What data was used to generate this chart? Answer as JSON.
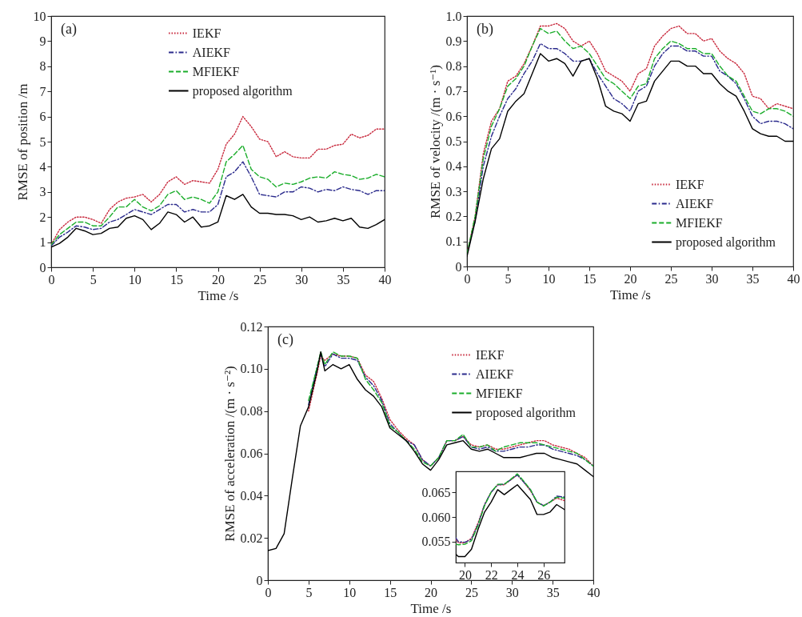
{
  "chart_data": [
    {
      "type": "line",
      "annotations": [
        "(a)"
      ],
      "xlabel": "Time /s",
      "ylabel": "RMSE of position /m",
      "legend": "top",
      "grid": false,
      "x": [
        0,
        1,
        2,
        3,
        4,
        5,
        6,
        7,
        8,
        9,
        10,
        11,
        12,
        13,
        14,
        15,
        16,
        17,
        18,
        19,
        20,
        21,
        22,
        23,
        24,
        25,
        26,
        27,
        28,
        29,
        30,
        31,
        32,
        33,
        34,
        35,
        36,
        37,
        38,
        39,
        40
      ],
      "xlim": [
        0,
        40
      ],
      "xticks": [
        0,
        5,
        10,
        15,
        20,
        25,
        30,
        35,
        40
      ],
      "ylim": [
        0,
        10
      ],
      "yticks": [
        0,
        1,
        2,
        3,
        4,
        5,
        6,
        7,
        8,
        9,
        10
      ],
      "series": [
        {
          "name": "IEKF",
          "color": "#c8283c",
          "line_style": "dotted",
          "values": [
            0.9,
            1.5,
            1.8,
            2.0,
            2.0,
            1.9,
            1.75,
            2.3,
            2.6,
            2.75,
            2.8,
            2.9,
            2.6,
            2.9,
            3.4,
            3.6,
            3.3,
            3.45,
            3.4,
            3.35,
            3.9,
            4.9,
            5.3,
            6.0,
            5.6,
            5.1,
            5.0,
            4.4,
            4.6,
            4.4,
            4.35,
            4.35,
            4.7,
            4.7,
            4.85,
            4.9,
            5.3,
            5.15,
            5.25,
            5.5,
            5.5
          ]
        },
        {
          "name": "AIEKF",
          "color": "#2a2a8c",
          "line_style": "dashdot",
          "values": [
            0.85,
            1.2,
            1.4,
            1.65,
            1.6,
            1.5,
            1.55,
            1.8,
            1.9,
            2.1,
            2.3,
            2.2,
            2.1,
            2.3,
            2.5,
            2.5,
            2.2,
            2.3,
            2.2,
            2.2,
            2.5,
            3.6,
            3.8,
            4.2,
            3.6,
            2.9,
            2.85,
            2.8,
            3.0,
            3.0,
            3.2,
            3.15,
            3.0,
            3.1,
            3.05,
            3.2,
            3.1,
            3.05,
            2.9,
            3.05,
            3.05
          ]
        },
        {
          "name": "MFIEKF",
          "color": "#1aad2a",
          "line_style": "dashed",
          "values": [
            0.9,
            1.3,
            1.55,
            1.8,
            1.8,
            1.65,
            1.65,
            2.0,
            2.4,
            2.4,
            2.7,
            2.4,
            2.25,
            2.45,
            2.9,
            3.05,
            2.7,
            2.8,
            2.7,
            2.55,
            3.0,
            4.2,
            4.5,
            4.85,
            3.9,
            3.6,
            3.5,
            3.2,
            3.35,
            3.3,
            3.4,
            3.55,
            3.6,
            3.55,
            3.8,
            3.7,
            3.65,
            3.5,
            3.55,
            3.7,
            3.6
          ]
        },
        {
          "name": "proposed algorithm",
          "color": "#000000",
          "line_style": "solid",
          "values": [
            0.8,
            0.95,
            1.2,
            1.55,
            1.45,
            1.3,
            1.35,
            1.55,
            1.6,
            1.95,
            2.05,
            1.9,
            1.5,
            1.75,
            2.2,
            2.1,
            1.8,
            2.0,
            1.6,
            1.65,
            1.8,
            2.85,
            2.7,
            2.9,
            2.4,
            2.15,
            2.15,
            2.1,
            2.1,
            2.05,
            1.9,
            2.0,
            1.8,
            1.85,
            1.95,
            1.85,
            1.95,
            1.6,
            1.55,
            1.7,
            1.9
          ]
        }
      ]
    },
    {
      "type": "line",
      "annotations": [
        "(b)"
      ],
      "xlabel": "Time /s",
      "ylabel": "RMSE of velocity /(m · s⁻¹)",
      "legend": "bottom right",
      "grid": false,
      "x": [
        0,
        1,
        2,
        3,
        4,
        5,
        6,
        7,
        8,
        9,
        10,
        11,
        12,
        13,
        14,
        15,
        16,
        17,
        18,
        19,
        20,
        21,
        22,
        23,
        24,
        25,
        26,
        27,
        28,
        29,
        30,
        31,
        32,
        33,
        34,
        35,
        36,
        37,
        38,
        39,
        40
      ],
      "xlim": [
        0,
        40
      ],
      "xticks": [
        0,
        5,
        10,
        15,
        20,
        25,
        30,
        35,
        40
      ],
      "ylim": [
        0,
        1
      ],
      "yticks": [
        0,
        0.1,
        0.2,
        0.3,
        0.4,
        0.5,
        0.6,
        0.7,
        0.8,
        0.9,
        {
          "value": 1,
          "label": "1.0"
        }
      ],
      "series": [
        {
          "name": "IEKF",
          "color": "#c8283c",
          "line_style": "dotted",
          "values": [
            0.05,
            0.2,
            0.45,
            0.58,
            0.63,
            0.74,
            0.76,
            0.81,
            0.88,
            0.96,
            0.96,
            0.97,
            0.95,
            0.9,
            0.88,
            0.9,
            0.85,
            0.78,
            0.76,
            0.74,
            0.7,
            0.77,
            0.79,
            0.88,
            0.92,
            0.95,
            0.96,
            0.93,
            0.93,
            0.9,
            0.91,
            0.86,
            0.83,
            0.81,
            0.77,
            0.68,
            0.67,
            0.63,
            0.65,
            0.64,
            0.63
          ]
        },
        {
          "name": "AIEKF",
          "color": "#2a2a8c",
          "line_style": "dashdot",
          "values": [
            0.05,
            0.18,
            0.4,
            0.52,
            0.6,
            0.67,
            0.71,
            0.77,
            0.82,
            0.89,
            0.87,
            0.87,
            0.85,
            0.82,
            0.82,
            0.83,
            0.77,
            0.72,
            0.67,
            0.65,
            0.62,
            0.7,
            0.72,
            0.8,
            0.85,
            0.88,
            0.88,
            0.86,
            0.86,
            0.84,
            0.84,
            0.78,
            0.76,
            0.73,
            0.67,
            0.6,
            0.57,
            0.58,
            0.58,
            0.57,
            0.55
          ]
        },
        {
          "name": "MFIEKF",
          "color": "#1aad2a",
          "line_style": "dashed",
          "values": [
            0.05,
            0.2,
            0.43,
            0.56,
            0.63,
            0.72,
            0.75,
            0.8,
            0.88,
            0.95,
            0.93,
            0.94,
            0.9,
            0.87,
            0.88,
            0.85,
            0.8,
            0.75,
            0.73,
            0.7,
            0.67,
            0.72,
            0.73,
            0.83,
            0.87,
            0.9,
            0.89,
            0.87,
            0.87,
            0.85,
            0.85,
            0.8,
            0.76,
            0.74,
            0.68,
            0.62,
            0.61,
            0.63,
            0.63,
            0.62,
            0.6
          ]
        },
        {
          "name": "proposed algorithm",
          "color": "#000000",
          "line_style": "solid",
          "values": [
            0.04,
            0.18,
            0.35,
            0.47,
            0.51,
            0.62,
            0.66,
            0.69,
            0.77,
            0.85,
            0.82,
            0.83,
            0.81,
            0.76,
            0.82,
            0.83,
            0.75,
            0.64,
            0.62,
            0.61,
            0.58,
            0.65,
            0.66,
            0.74,
            0.78,
            0.82,
            0.82,
            0.8,
            0.8,
            0.77,
            0.77,
            0.73,
            0.7,
            0.68,
            0.62,
            0.55,
            0.53,
            0.52,
            0.52,
            0.5,
            0.5
          ]
        }
      ]
    },
    {
      "type": "line",
      "annotations": [
        "(c)"
      ],
      "xlabel": "Time /s",
      "ylabel": "RMSE of acceleration /(m · s⁻²)",
      "legend": "top right",
      "grid": false,
      "x": [
        0,
        1,
        2,
        3,
        4,
        5,
        6,
        6.5,
        7,
        8,
        9,
        10,
        11,
        12,
        13,
        14,
        15,
        16,
        17,
        18,
        19,
        20,
        21,
        22,
        23,
        24,
        25,
        26,
        27,
        28,
        29,
        30,
        31,
        32,
        33,
        34,
        35,
        36,
        37,
        38,
        39,
        40
      ],
      "xlim": [
        0,
        40
      ],
      "xticks": [
        0,
        5,
        10,
        15,
        20,
        25,
        30,
        35,
        40
      ],
      "ylim": [
        0,
        0.12
      ],
      "yticks": [
        0,
        0.02,
        0.04,
        0.06,
        0.08,
        {
          "value": 0.1,
          "label": "0.10"
        },
        0.12
      ],
      "series": [
        {
          "name": "IEKF",
          "color": "#c8283c",
          "line_style": "dotted",
          "values": [
            null,
            null,
            null,
            null,
            null,
            0.08,
            0.097,
            0.106,
            0.104,
            0.107,
            0.106,
            0.106,
            0.105,
            0.097,
            0.094,
            0.086,
            0.076,
            0.071,
            0.067,
            0.064,
            0.057,
            0.054,
            0.058,
            0.066,
            0.066,
            0.068,
            0.064,
            0.063,
            0.064,
            0.062,
            0.062,
            0.063,
            0.064,
            0.065,
            0.066,
            0.066,
            0.064,
            0.063,
            0.062,
            0.06,
            0.058,
            0.054
          ]
        },
        {
          "name": "AIEKF",
          "color": "#2a2a8c",
          "line_style": "dashdot",
          "values": [
            null,
            null,
            null,
            null,
            null,
            0.083,
            0.1,
            0.107,
            0.101,
            0.107,
            0.105,
            0.105,
            0.104,
            0.096,
            0.092,
            0.085,
            0.074,
            0.07,
            0.066,
            0.064,
            0.057,
            0.054,
            0.058,
            0.066,
            0.066,
            0.068,
            0.063,
            0.062,
            0.063,
            0.061,
            0.061,
            0.062,
            0.063,
            0.063,
            0.064,
            0.064,
            0.062,
            0.061,
            0.06,
            0.059,
            0.057,
            0.054
          ]
        },
        {
          "name": "MFIEKF",
          "color": "#1aad2a",
          "line_style": "dashed",
          "values": [
            null,
            null,
            null,
            null,
            null,
            0.085,
            0.1,
            0.108,
            0.102,
            0.108,
            0.106,
            0.106,
            0.105,
            0.095,
            0.09,
            0.084,
            0.073,
            0.07,
            0.066,
            0.062,
            0.056,
            0.054,
            0.058,
            0.066,
            0.066,
            0.069,
            0.063,
            0.063,
            0.064,
            0.061,
            0.063,
            0.064,
            0.065,
            0.065,
            0.065,
            0.064,
            0.063,
            0.062,
            0.061,
            0.06,
            0.057,
            0.054
          ]
        },
        {
          "name": "proposed algorithm",
          "color": "#000000",
          "line_style": "solid",
          "values": [
            0.014,
            0.015,
            0.022,
            0.048,
            0.073,
            0.082,
            0.098,
            0.108,
            0.099,
            0.102,
            0.1,
            0.102,
            0.095,
            0.09,
            0.087,
            0.082,
            0.072,
            0.069,
            0.066,
            0.061,
            0.055,
            0.052,
            0.057,
            0.064,
            0.065,
            0.066,
            0.062,
            0.061,
            0.062,
            0.06,
            0.058,
            0.058,
            0.058,
            0.059,
            0.06,
            0.06,
            0.058,
            0.057,
            0.056,
            0.055,
            0.052,
            0.049
          ]
        }
      ]
    },
    {
      "type": "line",
      "grid": false,
      "x": [
        19.3,
        19.5,
        20,
        20.5,
        21,
        21.5,
        22,
        22.5,
        23,
        23.5,
        24,
        24.5,
        25,
        25.5,
        26,
        26.5,
        27,
        27.6
      ],
      "xlim": [
        19.3,
        27.6
      ],
      "xticks": [
        20,
        22,
        24,
        26
      ],
      "ylim": [
        0.0508,
        0.0692
      ],
      "yticks": [
        0.055,
        {
          "value": 0.06,
          "label": "0.060"
        },
        0.065
      ],
      "series": [
        {
          "color": "#c8283c",
          "line_style": "dotted",
          "values": [
            0.0555,
            0.0548,
            0.0548,
            0.0557,
            0.0588,
            0.0625,
            0.065,
            0.0665,
            0.0665,
            0.0675,
            0.0685,
            0.067,
            0.0653,
            0.063,
            0.0623,
            0.063,
            0.0638,
            0.0633
          ]
        },
        {
          "color": "#2a2a8c",
          "line_style": "dashdot",
          "values": [
            0.0558,
            0.055,
            0.0549,
            0.0555,
            0.0585,
            0.0625,
            0.065,
            0.0665,
            0.0666,
            0.0675,
            0.0685,
            0.067,
            0.0655,
            0.063,
            0.0623,
            0.063,
            0.0642,
            0.064
          ]
        },
        {
          "color": "#1aad2a",
          "line_style": "dashed",
          "values": [
            0.0545,
            0.0544,
            0.0545,
            0.0552,
            0.0583,
            0.0623,
            0.065,
            0.0666,
            0.0666,
            0.0676,
            0.0687,
            0.0672,
            0.0655,
            0.063,
            0.0622,
            0.063,
            0.064,
            0.0638
          ]
        },
        {
          "color": "#000000",
          "line_style": "solid",
          "values": [
            0.0525,
            0.052,
            0.052,
            0.0535,
            0.0575,
            0.061,
            0.063,
            0.0655,
            0.0645,
            0.0655,
            0.0665,
            0.065,
            0.0635,
            0.0605,
            0.0605,
            0.061,
            0.0625,
            0.0615
          ]
        }
      ]
    }
  ]
}
